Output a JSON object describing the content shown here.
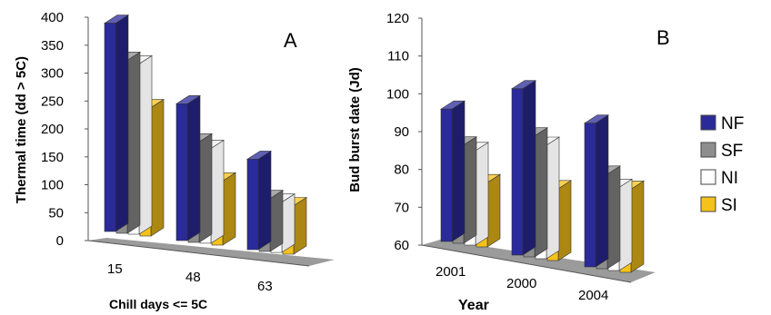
{
  "colors": {
    "NF": "#2a2a9a",
    "SF": "#8e8e8e",
    "NI": "#ffffff",
    "SI": "#f5c21b"
  },
  "legend": [
    {
      "key": "NF",
      "label": "NF"
    },
    {
      "key": "SF",
      "label": "SF"
    },
    {
      "key": "NI",
      "label": "NI"
    },
    {
      "key": "SI",
      "label": "SI"
    }
  ],
  "chart_data": [
    {
      "type": "bar",
      "panel": "A",
      "title": "A",
      "xlabel": "Chill days <= 5C",
      "ylabel": "Thermal time (dd > 5C)",
      "ylim": [
        0,
        400
      ],
      "yticks": [
        0,
        50,
        100,
        150,
        200,
        250,
        300,
        350,
        400
      ],
      "categories": [
        "15",
        "48",
        "63"
      ],
      "series": [
        {
          "name": "NF",
          "values": [
            373,
            245,
            162
          ]
        },
        {
          "name": "SF",
          "values": [
            310,
            180,
            95
          ]
        },
        {
          "name": "NI",
          "values": [
            305,
            170,
            90
          ]
        },
        {
          "name": "SI",
          "values": [
            230,
            115,
            87
          ]
        }
      ]
    },
    {
      "type": "bar",
      "panel": "B",
      "title": "B",
      "xlabel": "Year",
      "ylabel": "Bud burst date (Jd)",
      "ylim": [
        60,
        120
      ],
      "yticks": [
        60,
        70,
        80,
        90,
        100,
        110,
        120
      ],
      "categories": [
        "2001",
        "2000",
        "2004"
      ],
      "series": [
        {
          "name": "NF",
          "values": [
            95,
            104,
            98
          ]
        },
        {
          "name": "SF",
          "values": [
            86,
            92,
            85
          ]
        },
        {
          "name": "NI",
          "values": [
            85,
            90,
            82
          ]
        },
        {
          "name": "SI",
          "values": [
            77,
            79,
            82
          ]
        }
      ]
    }
  ]
}
